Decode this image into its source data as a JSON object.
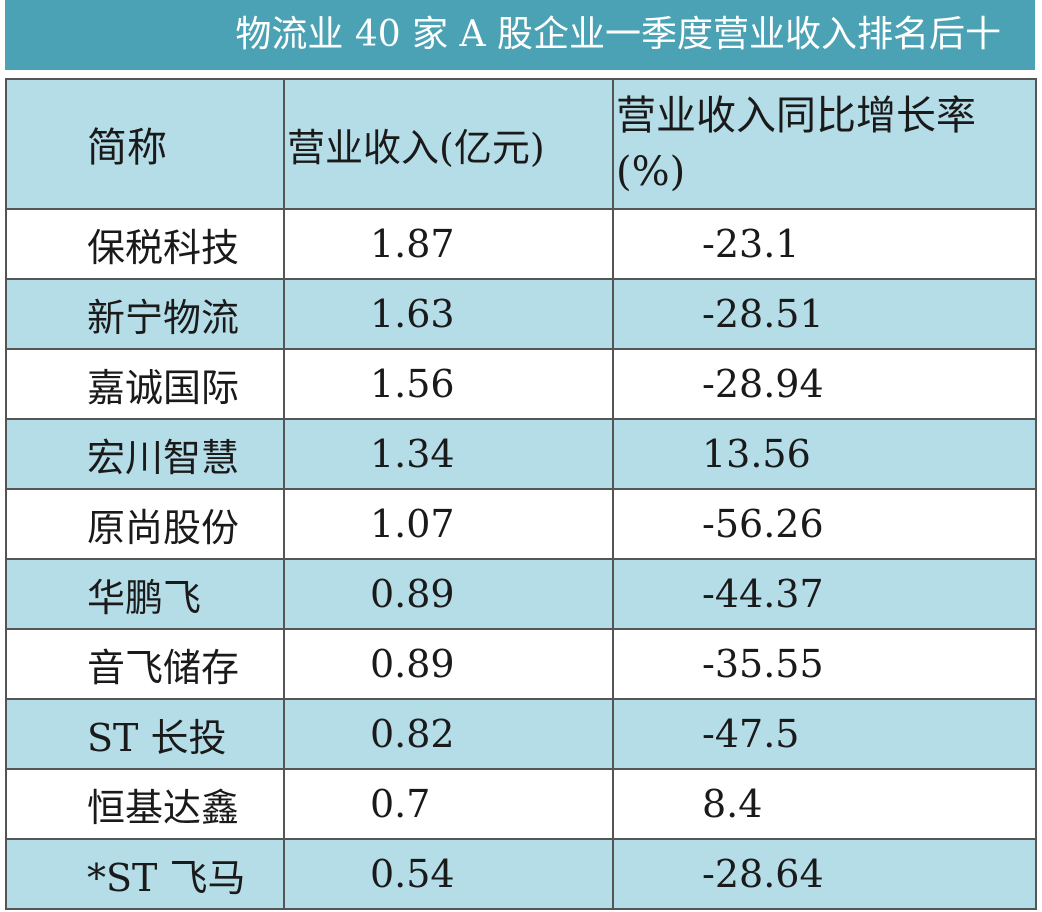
{
  "title": "物流业 40 家 A 股企业一季度营业收入排名后十",
  "table": {
    "header": [
      "简称",
      "营业收入(亿元)",
      "营业收入同比增长率(%)"
    ],
    "rows": [
      [
        "保税科技",
        "1.87",
        "-23.1"
      ],
      [
        "新宁物流",
        "1.63",
        "-28.51"
      ],
      [
        "嘉诚国际",
        "1.56",
        "-28.94"
      ],
      [
        "宏川智慧",
        "1.34",
        "13.56"
      ],
      [
        "原尚股份",
        "1.07",
        "-56.26"
      ],
      [
        "华鹏飞",
        "0.89",
        "-44.37"
      ],
      [
        "音飞储存",
        "0.89",
        "-35.55"
      ],
      [
        "ST 长投",
        "0.82",
        "-47.5"
      ],
      [
        "恒基达鑫",
        "0.7",
        "8.4"
      ],
      [
        "*ST 飞马",
        "0.54",
        "-28.64"
      ]
    ]
  }
}
